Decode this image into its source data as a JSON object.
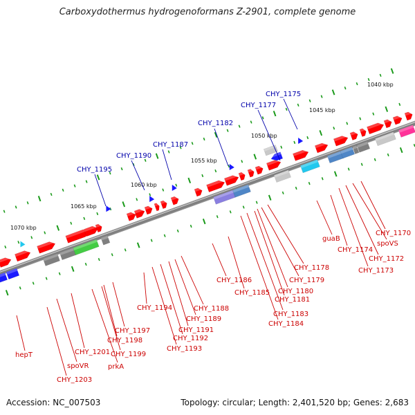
{
  "title": "Carboxydothermus hydrogenoformans Z-2901, complete genome",
  "accession": "Accession: NC_007503",
  "summary": "Topology: circular; Length: 2,401,520 bp; Genes: 2,683",
  "colors": {
    "backbone": "#808080",
    "gene_red": "#ff0000",
    "gene_gray": "#7f7f7f",
    "gene_lightgray": "#c8c8c8",
    "gene_blue": "#1a1aff",
    "gene_purple": "#8a7fe0",
    "gene_steel": "#4f86c6",
    "gene_cyan": "#22c8ee",
    "gene_green": "#44cc44",
    "gene_magenta": "#ff3399",
    "tick_green": "#1a9a1a",
    "label_blue": "#0000aa",
    "label_red": "#cc0000"
  },
  "kbp_labels": [
    "1040 kbp",
    "1045 kbp",
    "1050 kbp",
    "1055 kbp",
    "1060 kbp",
    "1065 kbp",
    "1070 kbp"
  ],
  "blue_labels": [
    "CHY_1175",
    "CHY_1177",
    "CHY_1182",
    "CHY_1187",
    "CHY_1190",
    "CHY_1195"
  ],
  "red_labels": [
    "CHY_1170",
    "spoVS",
    "CHY_1172",
    "CHY_1173",
    "CHY_1174",
    "guaB",
    "CHY_1178",
    "CHY_1179",
    "CHY_1180",
    "CHY_1181",
    "CHY_1183",
    "CHY_1184",
    "CHY_1185",
    "CHY_1186",
    "CHY_1188",
    "CHY_1189",
    "CHY_1191",
    "CHY_1192",
    "CHY_1193",
    "CHY_1194",
    "CHY_1197",
    "CHY_1198",
    "CHY_1199",
    "prkA",
    "CHY_1201",
    "spoVR",
    "CHY_1203",
    "hepT"
  ]
}
